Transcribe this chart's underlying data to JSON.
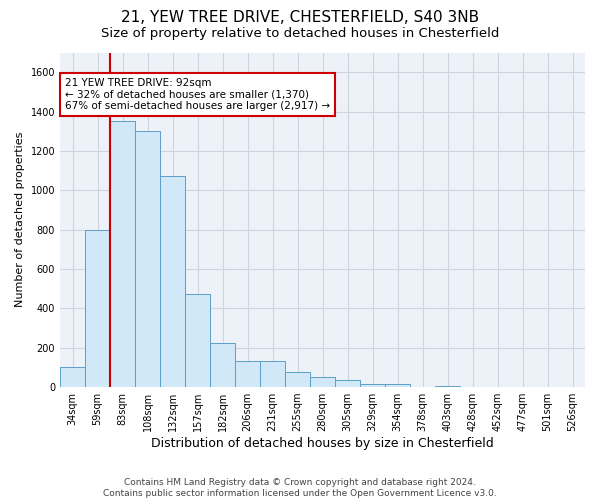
{
  "title_line1": "21, YEW TREE DRIVE, CHESTERFIELD, S40 3NB",
  "title_line2": "Size of property relative to detached houses in Chesterfield",
  "xlabel": "Distribution of detached houses by size in Chesterfield",
  "ylabel": "Number of detached properties",
  "footer_line1": "Contains HM Land Registry data © Crown copyright and database right 2024.",
  "footer_line2": "Contains public sector information licensed under the Open Government Licence v3.0.",
  "bin_labels": [
    "34sqm",
    "59sqm",
    "83sqm",
    "108sqm",
    "132sqm",
    "157sqm",
    "182sqm",
    "206sqm",
    "231sqm",
    "255sqm",
    "280sqm",
    "305sqm",
    "329sqm",
    "354sqm",
    "378sqm",
    "403sqm",
    "428sqm",
    "452sqm",
    "477sqm",
    "501sqm",
    "526sqm"
  ],
  "bar_values": [
    100,
    800,
    1350,
    1300,
    1075,
    475,
    225,
    135,
    130,
    75,
    50,
    35,
    15,
    15,
    0,
    5,
    0,
    0,
    0,
    0,
    0
  ],
  "bar_color": "#d0e8f8",
  "bar_edge_color": "#5b9fc7",
  "annotation_box_text": "21 YEW TREE DRIVE: 92sqm\n← 32% of detached houses are smaller (1,370)\n67% of semi-detached houses are larger (2,917) →",
  "vline_x": 2.0,
  "vline_color": "#cc0000",
  "ylim": [
    0,
    1700
  ],
  "yticks": [
    0,
    200,
    400,
    600,
    800,
    1000,
    1200,
    1400,
    1600
  ],
  "grid_color": "#d0d4dc",
  "background_color": "#edf1f8",
  "annotation_box_color": "white",
  "annotation_box_edge_color": "#cc0000",
  "title_fontsize": 11,
  "subtitle_fontsize": 9.5,
  "annotation_fontsize": 7.5,
  "tick_fontsize": 7,
  "xlabel_fontsize": 9,
  "ylabel_fontsize": 8
}
